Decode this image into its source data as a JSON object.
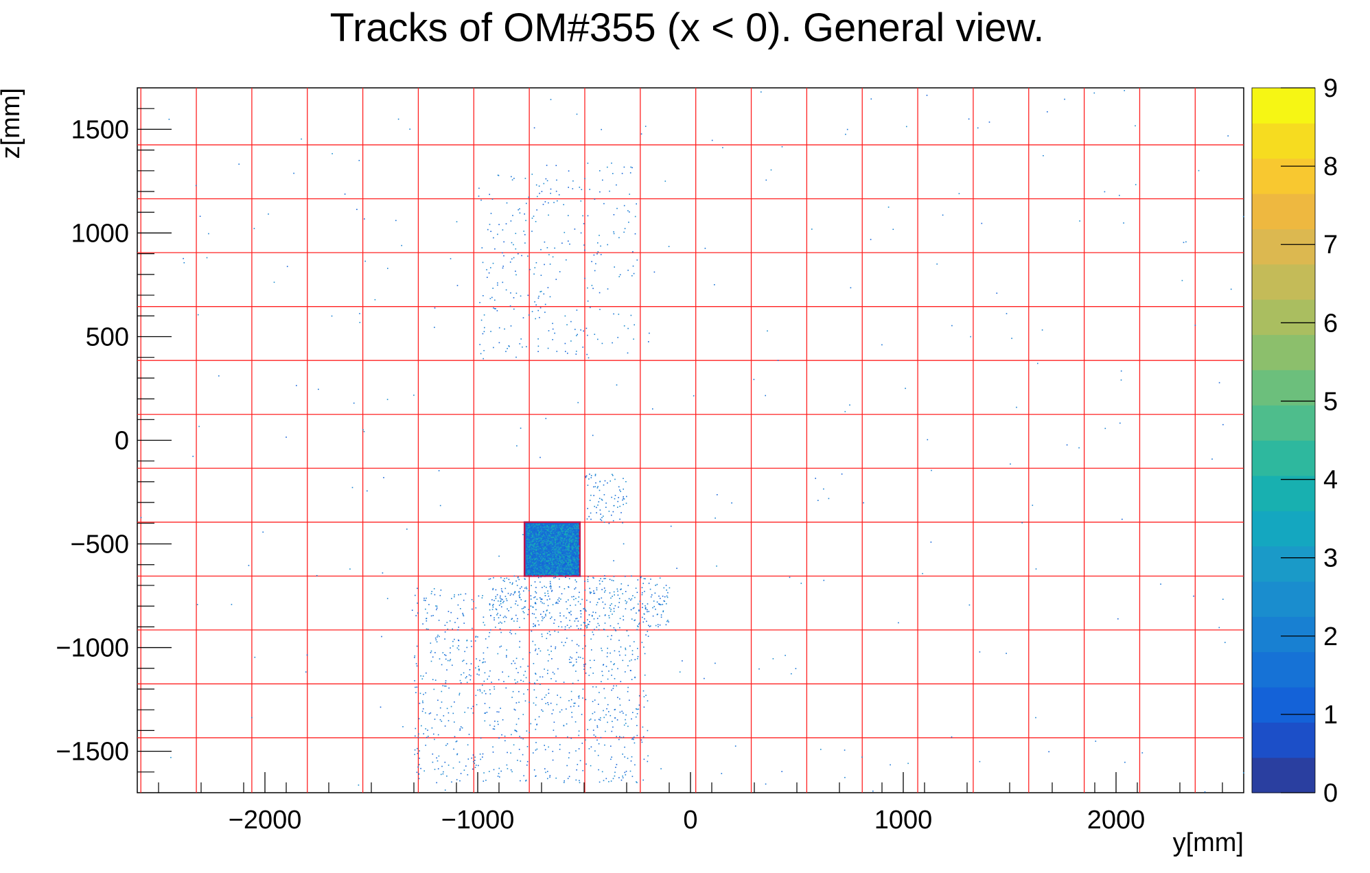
{
  "chart_data": {
    "type": "heatmap",
    "title": "Tracks of OM#355 (x < 0). General view.",
    "xlabel": "y[mm]",
    "ylabel": "z[mm]",
    "xlim": [
      -2600,
      2600
    ],
    "ylim": [
      -1700,
      1700
    ],
    "x_ticks": [
      -2000,
      -1000,
      0,
      1000,
      2000
    ],
    "x_tick_labels": [
      "−2000",
      "−1000",
      "0",
      "1000",
      "2000"
    ],
    "y_ticks": [
      -1500,
      -1000,
      -500,
      0,
      500,
      1000,
      1500
    ],
    "y_tick_labels": [
      "−1500",
      "−1000",
      "−500",
      "0",
      "500",
      "1000",
      "1500"
    ],
    "colorbar": {
      "range": [
        0,
        9
      ],
      "ticks": [
        0,
        1,
        2,
        3,
        4,
        5,
        6,
        7,
        8,
        9
      ],
      "tick_labels": [
        "0",
        "1",
        "2",
        "3",
        "4",
        "5",
        "6",
        "7",
        "8",
        "9"
      ],
      "colors": [
        "#2a3fa0",
        "#1c4fc8",
        "#1462d8",
        "#1672d6",
        "#1880d2",
        "#1a8dce",
        "#1a9ac8",
        "#14a7c0",
        "#18b0b0",
        "#2eb89e",
        "#4ebd8c",
        "#6cbf7c",
        "#8cbf6c",
        "#aabe60",
        "#c4bb58",
        "#dcb850",
        "#eeb840",
        "#f8c830",
        "#f6dc20",
        "#f6f614"
      ]
    },
    "grid_lines": {
      "color": "#ff2020",
      "y_values": [
        -2583.2,
        -2322.4,
        -2061.6,
        -1800.8,
        -1540.0,
        -1279.2,
        -1018.4,
        -757.6,
        -496.8,
        -236.0,
        24.8,
        285.6,
        546.4,
        807.2,
        1068.0,
        1328.8,
        1589.6,
        1850.4,
        2111.2,
        2372.0
      ],
      "z_values": [
        -1435,
        -1175,
        -915,
        -655,
        -395,
        -135,
        125,
        385,
        645,
        905,
        1165,
        1425
      ]
    },
    "hot_region": {
      "y_range": [
        -780,
        -520
      ],
      "z_range": [
        -655,
        -395
      ],
      "value_range": [
        1,
        4
      ],
      "border_color": "#c0154a"
    },
    "scatter_regions": [
      {
        "y_range": [
          -1300,
          -200
        ],
        "z_range": [
          -1650,
          -700
        ],
        "count": 900,
        "value": 1
      },
      {
        "y_range": [
          -950,
          -100
        ],
        "z_range": [
          -900,
          -650
        ],
        "count": 350,
        "value": 1
      },
      {
        "y_range": [
          -500,
          -300
        ],
        "z_range": [
          -400,
          -150
        ],
        "count": 80,
        "value": 1
      },
      {
        "y_range": [
          -1000,
          -250
        ],
        "z_range": [
          400,
          1350
        ],
        "count": 280,
        "value": 1
      },
      {
        "y_range": [
          -2600,
          2600
        ],
        "z_range": [
          -1700,
          1700
        ],
        "count": 260,
        "value": 1
      }
    ]
  }
}
